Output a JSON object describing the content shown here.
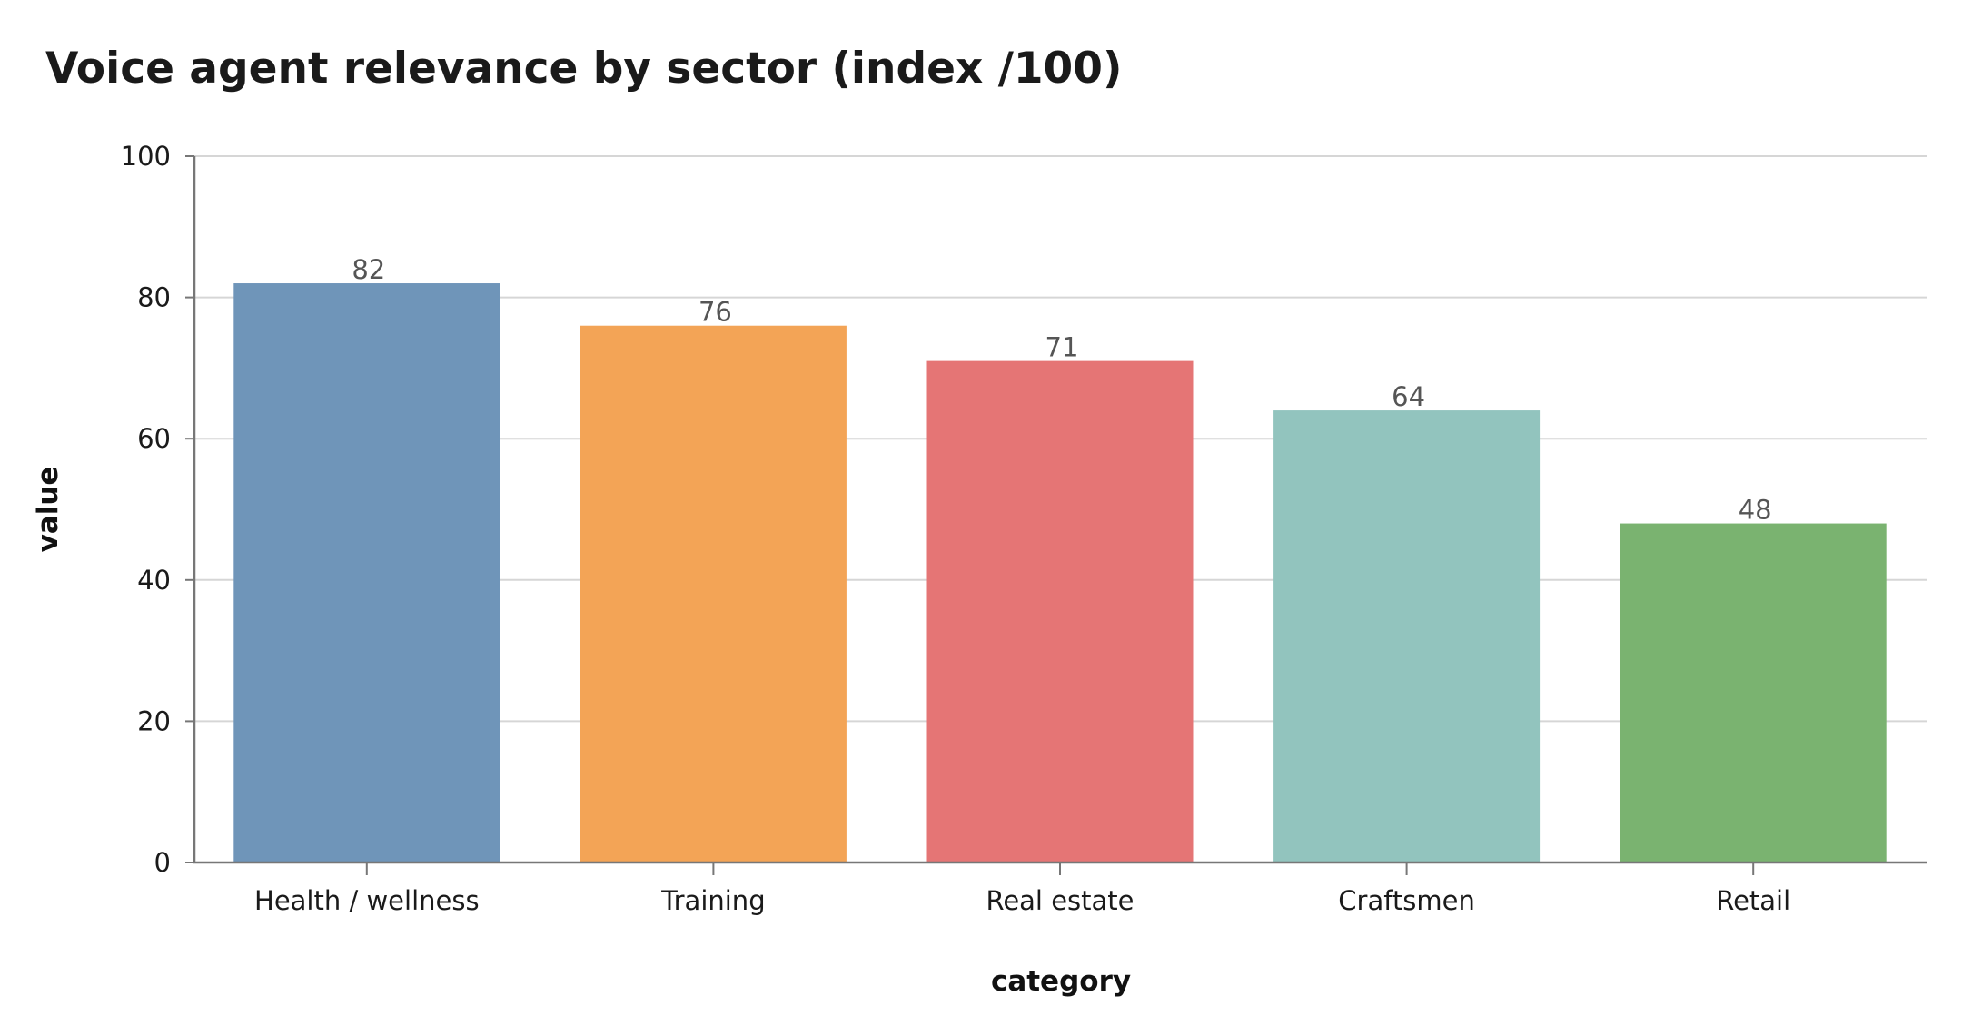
{
  "chart_data": {
    "type": "bar",
    "title": "Voice agent relevance by sector (index /100)",
    "xlabel": "category",
    "ylabel": "value",
    "categories": [
      "Health / wellness",
      "Training",
      "Real estate",
      "Craftsmen",
      "Retail"
    ],
    "values": [
      82,
      76,
      71,
      64,
      48
    ],
    "bar_colors": [
      "#6f95b9",
      "#f3a456",
      "#e57575",
      "#92c4be",
      "#7ab370"
    ],
    "ylim": [
      0,
      100
    ],
    "yticks": [
      0,
      20,
      40,
      60,
      80,
      100
    ],
    "grid": true,
    "legend": "none"
  }
}
